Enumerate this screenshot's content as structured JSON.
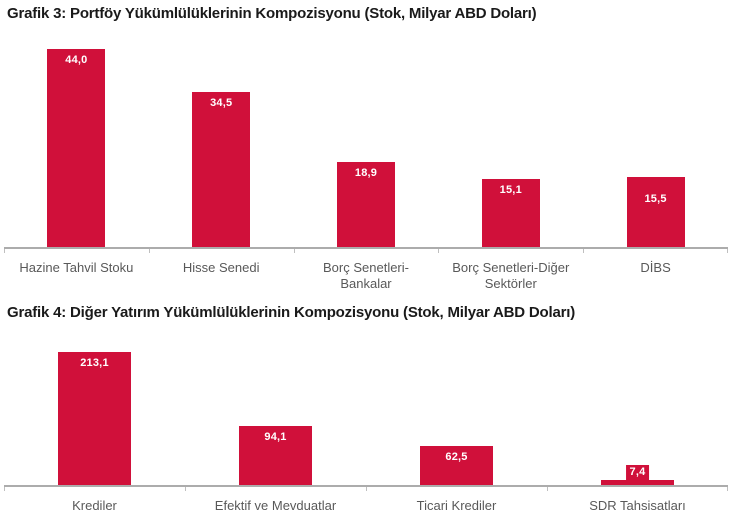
{
  "colors": {
    "background": "#FFFFFF",
    "bar_fill": "#D0103A",
    "value_label_text": "#FFFFFF",
    "axis_line": "#ACACAC",
    "tick_mark": "#BFBFBF",
    "category_label_text": "#595959",
    "title_text": "#1A1A1A"
  },
  "chart_data": [
    {
      "type": "bar",
      "title": "Grafik 3: Portföy Yükümlülüklerinin Kompozisyonu (Stok, Milyar ABD Doları)",
      "categories": [
        "Hazine Tahvil Stoku",
        "Hisse Senedi",
        "Borç Senetleri-Bankalar",
        "Borç Senetleri-Diğer Sektörler",
        "DİBS"
      ],
      "category_labels": [
        "Hazine Tahvil Stoku",
        "Hisse Senedi",
        "Borç Senetleri-\nBankalar",
        "Borç Senetleri-Diğer\nSektörler",
        "DİBS"
      ],
      "values": [
        44.0,
        34.5,
        18.9,
        15.1,
        15.5
      ],
      "value_labels": [
        "44,0",
        "34,5",
        "18,9",
        "15,1",
        "15,5"
      ],
      "label_placement": [
        "inside",
        "inside",
        "inside",
        "inside",
        "inside-low"
      ],
      "xlabel": "",
      "ylabel": "",
      "ylim": [
        0,
        46
      ],
      "grid": false,
      "legend": false,
      "y_axis_shown": false
    },
    {
      "type": "bar",
      "title": "Grafik 4: Diğer Yatırım Yükümlülüklerinin Kompozisyonu (Stok, Milyar ABD Doları)",
      "categories": [
        "Krediler",
        "Efektif ve Mevduatlar",
        "Ticari Krediler",
        "SDR Tahsisatları"
      ],
      "category_labels": [
        "Krediler",
        "Efektif ve Mevduatlar",
        "Ticari Krediler",
        "SDR Tahsisatları"
      ],
      "values": [
        213.1,
        94.1,
        62.5,
        7.4
      ],
      "value_labels": [
        "213,1",
        "94,1",
        "62,5",
        "7,4"
      ],
      "label_placement": [
        "inside",
        "inside",
        "inside",
        "callout"
      ],
      "xlabel": "",
      "ylabel": "",
      "ylim": [
        0,
        232
      ],
      "grid": false,
      "legend": false,
      "y_axis_shown": false
    }
  ]
}
